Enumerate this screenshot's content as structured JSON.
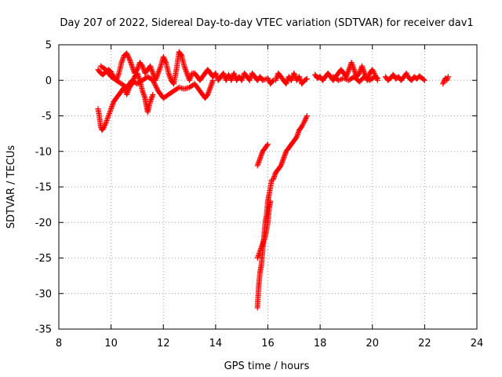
{
  "chart_data": {
    "type": "scatter",
    "title": "Day 207 of 2022, Sidereal Day-to-day VTEC variation (SDTVAR) for receiver dav1",
    "xlabel": "GPS time / hours",
    "ylabel": "SDTVAR / TECUs",
    "xlim": [
      8,
      24
    ],
    "ylim": [
      -35,
      5
    ],
    "xticks": [
      "8",
      "10",
      "12",
      "14",
      "16",
      "18",
      "20",
      "22",
      "24"
    ],
    "yticks": [
      "5",
      "0",
      "-5",
      "-10",
      "-15",
      "-20",
      "-25",
      "-30",
      "-35"
    ],
    "grid": true,
    "marker": "+",
    "color": "#ff0000",
    "series": [
      {
        "name": "dav1",
        "segments": [
          [
            [
              9.5,
              -4
            ],
            [
              9.55,
              -5
            ],
            [
              9.6,
              -6.5
            ],
            [
              9.65,
              -7
            ],
            [
              9.7,
              -6.8
            ],
            [
              9.8,
              -6
            ],
            [
              9.9,
              -5
            ],
            [
              10.0,
              -4
            ],
            [
              10.1,
              -3
            ],
            [
              10.2,
              -2.5
            ],
            [
              10.3,
              -2
            ],
            [
              10.4,
              -1.5
            ],
            [
              10.5,
              -1
            ],
            [
              10.55,
              -1.5
            ],
            [
              10.6,
              -2
            ],
            [
              10.7,
              -1
            ],
            [
              10.8,
              -0.5
            ],
            [
              10.9,
              0.5
            ],
            [
              11.0,
              1
            ],
            [
              11.1,
              0
            ],
            [
              11.2,
              -1.5
            ],
            [
              11.3,
              -2.5
            ],
            [
              11.35,
              -3.5
            ],
            [
              11.4,
              -4.5
            ],
            [
              11.5,
              -3
            ],
            [
              11.6,
              -2
            ]
          ],
          [
            [
              9.5,
              1.5
            ],
            [
              9.6,
              1
            ],
            [
              9.7,
              0.8
            ],
            [
              9.8,
              1.2
            ],
            [
              9.9,
              1.5
            ],
            [
              10.0,
              1.2
            ],
            [
              10.1,
              0.5
            ],
            [
              10.2,
              0
            ],
            [
              10.3,
              1
            ],
            [
              10.4,
              2.5
            ],
            [
              10.5,
              3.5
            ],
            [
              10.6,
              3.8
            ],
            [
              10.7,
              3
            ],
            [
              10.8,
              2
            ],
            [
              10.9,
              1
            ],
            [
              11.0,
              1.5
            ],
            [
              11.1,
              2.5
            ],
            [
              11.2,
              2
            ],
            [
              11.3,
              1
            ],
            [
              11.4,
              1.5
            ],
            [
              11.5,
              2
            ],
            [
              11.6,
              1
            ],
            [
              11.7,
              0
            ],
            [
              11.8,
              1
            ],
            [
              11.9,
              2
            ],
            [
              12.0,
              3.3
            ],
            [
              12.1,
              2.5
            ],
            [
              12.2,
              1
            ],
            [
              12.3,
              0
            ],
            [
              12.4,
              -0.5
            ],
            [
              12.5,
              1.5
            ],
            [
              12.6,
              4
            ],
            [
              12.7,
              3.5
            ],
            [
              12.8,
              2
            ],
            [
              12.9,
              1
            ],
            [
              13.0,
              0
            ],
            [
              13.1,
              1
            ],
            [
              13.2,
              1
            ],
            [
              13.3,
              0.5
            ],
            [
              13.4,
              0
            ],
            [
              13.5,
              0.5
            ],
            [
              13.6,
              1
            ],
            [
              13.7,
              1.5
            ],
            [
              13.8,
              1
            ],
            [
              13.9,
              0.5
            ],
            [
              14.0,
              1
            ],
            [
              14.1,
              0
            ],
            [
              14.2,
              0.5
            ],
            [
              14.3,
              1
            ],
            [
              14.4,
              0
            ],
            [
              14.5,
              0.8
            ],
            [
              14.6,
              0
            ],
            [
              14.7,
              1
            ],
            [
              14.8,
              0
            ],
            [
              14.9,
              0.5
            ],
            [
              15.0,
              0
            ],
            [
              15.1,
              1
            ],
            [
              15.2,
              0.5
            ],
            [
              15.3,
              0
            ],
            [
              15.4,
              1
            ],
            [
              15.5,
              0.5
            ],
            [
              15.6,
              0
            ],
            [
              15.7,
              0.5
            ],
            [
              15.8,
              0
            ],
            [
              16.0,
              0.3
            ],
            [
              16.1,
              -0.5
            ],
            [
              16.2,
              0
            ]
          ],
          [
            [
              9.6,
              2
            ],
            [
              9.8,
              1.5
            ],
            [
              10.0,
              0.5
            ],
            [
              10.2,
              0
            ],
            [
              10.4,
              -0.5
            ],
            [
              10.6,
              -1
            ],
            [
              10.8,
              0
            ],
            [
              11.0,
              -0.5
            ],
            [
              11.2,
              0
            ],
            [
              11.4,
              0.5
            ],
            [
              11.6,
              0
            ],
            [
              11.8,
              -1.5
            ],
            [
              12.0,
              -2.5
            ],
            [
              12.2,
              -2
            ],
            [
              12.4,
              -1.5
            ],
            [
              12.6,
              -1
            ],
            [
              12.8,
              -1.2
            ],
            [
              13.0,
              -1
            ],
            [
              13.2,
              -0.5
            ],
            [
              13.4,
              -1.5
            ],
            [
              13.5,
              -2
            ],
            [
              13.6,
              -2.5
            ],
            [
              13.7,
              -2
            ],
            [
              13.8,
              -1
            ],
            [
              13.9,
              0
            ]
          ],
          [
            [
              15.6,
              -12
            ],
            [
              15.7,
              -11
            ],
            [
              15.8,
              -10
            ],
            [
              15.9,
              -9.5
            ],
            [
              16.0,
              -9
            ]
          ],
          [
            [
              15.6,
              -32
            ],
            [
              15.65,
              -29
            ],
            [
              15.7,
              -27
            ],
            [
              15.75,
              -26
            ],
            [
              15.8,
              -24
            ],
            [
              15.85,
              -22
            ],
            [
              15.9,
              -20
            ],
            [
              15.95,
              -19
            ],
            [
              16.0,
              -17
            ],
            [
              16.05,
              -16
            ],
            [
              16.1,
              -15
            ],
            [
              16.15,
              -14
            ],
            [
              16.2,
              -14
            ],
            [
              16.3,
              -13
            ],
            [
              16.4,
              -12.5
            ],
            [
              16.5,
              -12
            ],
            [
              16.6,
              -11
            ],
            [
              16.7,
              -10
            ],
            [
              16.8,
              -9.5
            ],
            [
              16.9,
              -9
            ],
            [
              17.0,
              -8.5
            ],
            [
              17.1,
              -8
            ],
            [
              17.2,
              -7
            ],
            [
              17.3,
              -6.5
            ],
            [
              17.4,
              -5.8
            ],
            [
              17.5,
              -5
            ]
          ],
          [
            [
              15.6,
              -25
            ],
            [
              15.7,
              -24
            ],
            [
              15.8,
              -23
            ],
            [
              15.9,
              -22
            ],
            [
              16.0,
              -20
            ],
            [
              16.05,
              -18
            ],
            [
              16.1,
              -17
            ]
          ],
          [
            [
              16.3,
              0
            ],
            [
              16.4,
              1
            ],
            [
              16.5,
              0.5
            ],
            [
              16.6,
              0
            ],
            [
              16.7,
              -0.5
            ],
            [
              16.8,
              0.5
            ],
            [
              16.9,
              0
            ],
            [
              17.0,
              1
            ],
            [
              17.1,
              0
            ],
            [
              17.2,
              0.5
            ],
            [
              17.3,
              -0.5
            ],
            [
              17.4,
              0
            ],
            [
              17.5,
              0.2
            ]
          ],
          [
            [
              17.8,
              0.8
            ],
            [
              17.9,
              0.3
            ],
            [
              18.0,
              0.5
            ],
            [
              18.1,
              0
            ],
            [
              18.2,
              0.5
            ],
            [
              18.3,
              1
            ],
            [
              18.4,
              0.5
            ],
            [
              18.5,
              0
            ],
            [
              18.6,
              0.5
            ],
            [
              18.7,
              1
            ],
            [
              18.8,
              1.5
            ],
            [
              18.9,
              1
            ],
            [
              19.0,
              0.5
            ],
            [
              19.1,
              1.5
            ],
            [
              19.2,
              2.5
            ],
            [
              19.3,
              1.5
            ],
            [
              19.4,
              0.5
            ],
            [
              19.5,
              1
            ],
            [
              19.6,
              2
            ],
            [
              19.7,
              1
            ],
            [
              19.8,
              0
            ],
            [
              19.9,
              1
            ],
            [
              20.0,
              1.5
            ],
            [
              20.1,
              0.8
            ],
            [
              20.2,
              0
            ]
          ],
          [
            [
              18.5,
              0.5
            ],
            [
              18.7,
              0
            ],
            [
              18.9,
              0.3
            ],
            [
              19.1,
              0
            ],
            [
              19.3,
              0.5
            ],
            [
              19.5,
              -0.2
            ],
            [
              19.7,
              0.5
            ],
            [
              19.9,
              0
            ],
            [
              20.1,
              0.5
            ],
            [
              20.2,
              0.3
            ]
          ],
          [
            [
              20.5,
              0.5
            ],
            [
              20.6,
              0
            ],
            [
              20.7,
              0.3
            ],
            [
              20.8,
              0.8
            ],
            [
              20.9,
              0.2
            ],
            [
              21.0,
              0.5
            ],
            [
              21.1,
              0
            ],
            [
              21.2,
              0.4
            ],
            [
              21.3,
              1
            ],
            [
              21.4,
              0.3
            ],
            [
              21.5,
              0
            ],
            [
              21.6,
              0.5
            ],
            [
              21.7,
              0.2
            ],
            [
              21.8,
              0.6
            ],
            [
              21.9,
              0.3
            ],
            [
              22.0,
              0
            ]
          ],
          [
            [
              22.7,
              -0.5
            ],
            [
              22.75,
              0
            ],
            [
              22.8,
              0.3
            ],
            [
              22.85,
              0
            ],
            [
              22.9,
              0.5
            ]
          ]
        ]
      }
    ]
  }
}
